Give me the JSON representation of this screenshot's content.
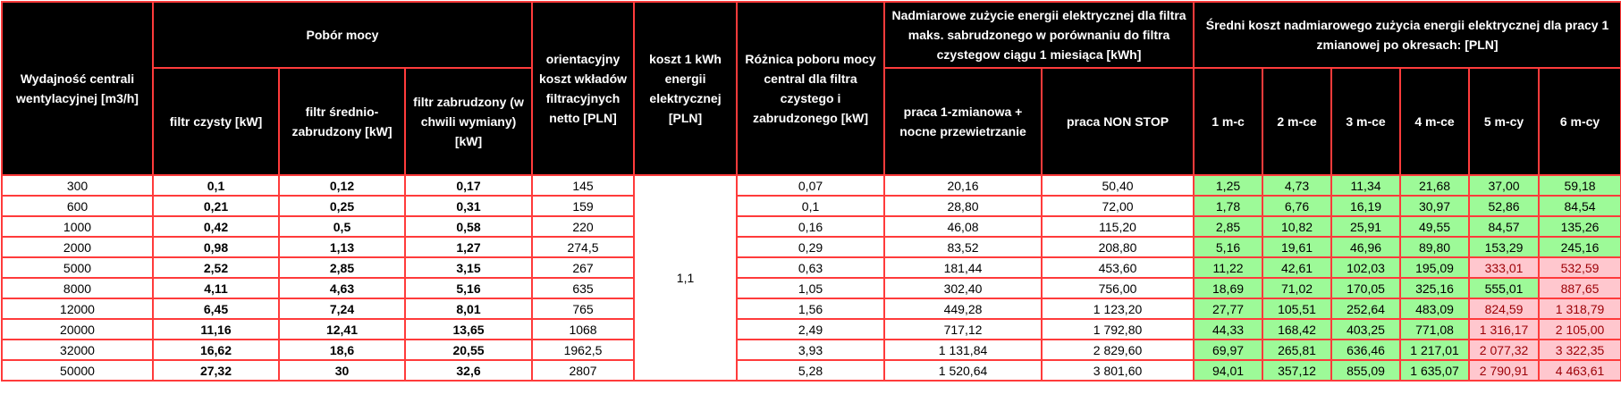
{
  "headers": {
    "capacity": "Wydajność centrali wentylacyjnej [m3/h]",
    "power_group": "Pobór mocy",
    "clean": "filtr czysty [kW]",
    "medium": "filtr średnio-zabrudzony [kW]",
    "dirty": "filtr zabrudzony (w chwili wymiany) [kW]",
    "filter_cost": "orientacyjny koszt wkładów filtracyjnych netto [PLN]",
    "kwh_cost": "koszt 1 kWh energii elektrycznej [PLN]",
    "difference": "Różnica poboru mocy central dla filtra czystego i zabrudzonego [kW]",
    "excess_group": "Nadmiarowe zużycie energii elektrycznej dla filtra maks. sabrudzonego w porównaniu do filtra czystegow ciągu 1 miesiąca [kWh]",
    "one_shift": "praca 1-zmianowa + nocne przewietrzanie",
    "nonstop": "praca NON STOP",
    "avg_cost_group": "Średni koszt nadmiarowego zużycia energii elektrycznej dla pracy 1 zmianowej po okresach: [PLN]",
    "periods": [
      "1 m-c",
      "2 m-ce",
      "3 m-ce",
      "4 m-ce",
      "5 m-cy",
      "6 m-cy"
    ]
  },
  "kwh_price": "1,1",
  "rows": [
    {
      "capacity": "300",
      "clean": "0,1",
      "medium": "0,12",
      "dirty": "0,17",
      "filter_cost": "145",
      "diff": "0,07",
      "one_shift": "20,16",
      "nonstop": "50,40",
      "costs": [
        "1,25",
        "4,73",
        "11,34",
        "21,68",
        "37,00",
        "59,18"
      ],
      "cost_status": [
        "good",
        "good",
        "good",
        "good",
        "good",
        "good"
      ]
    },
    {
      "capacity": "600",
      "clean": "0,21",
      "medium": "0,25",
      "dirty": "0,31",
      "filter_cost": "159",
      "diff": "0,1",
      "one_shift": "28,80",
      "nonstop": "72,00",
      "costs": [
        "1,78",
        "6,76",
        "16,19",
        "30,97",
        "52,86",
        "84,54"
      ],
      "cost_status": [
        "good",
        "good",
        "good",
        "good",
        "good",
        "good"
      ]
    },
    {
      "capacity": "1000",
      "clean": "0,42",
      "medium": "0,5",
      "dirty": "0,58",
      "filter_cost": "220",
      "diff": "0,16",
      "one_shift": "46,08",
      "nonstop": "115,20",
      "costs": [
        "2,85",
        "10,82",
        "25,91",
        "49,55",
        "84,57",
        "135,26"
      ],
      "cost_status": [
        "good",
        "good",
        "good",
        "good",
        "good",
        "good"
      ]
    },
    {
      "capacity": "2000",
      "clean": "0,98",
      "medium": "1,13",
      "dirty": "1,27",
      "filter_cost": "274,5",
      "diff": "0,29",
      "one_shift": "83,52",
      "nonstop": "208,80",
      "costs": [
        "5,16",
        "19,61",
        "46,96",
        "89,80",
        "153,29",
        "245,16"
      ],
      "cost_status": [
        "good",
        "good",
        "good",
        "good",
        "good",
        "good"
      ]
    },
    {
      "capacity": "5000",
      "clean": "2,52",
      "medium": "2,85",
      "dirty": "3,15",
      "filter_cost": "267",
      "diff": "0,63",
      "one_shift": "181,44",
      "nonstop": "453,60",
      "costs": [
        "11,22",
        "42,61",
        "102,03",
        "195,09",
        "333,01",
        "532,59"
      ],
      "cost_status": [
        "good",
        "good",
        "good",
        "good",
        "bad",
        "bad"
      ]
    },
    {
      "capacity": "8000",
      "clean": "4,11",
      "medium": "4,63",
      "dirty": "5,16",
      "filter_cost": "635",
      "diff": "1,05",
      "one_shift": "302,40",
      "nonstop": "756,00",
      "costs": [
        "18,69",
        "71,02",
        "170,05",
        "325,16",
        "555,01",
        "887,65"
      ],
      "cost_status": [
        "good",
        "good",
        "good",
        "good",
        "good",
        "bad"
      ]
    },
    {
      "capacity": "12000",
      "clean": "6,45",
      "medium": "7,24",
      "dirty": "8,01",
      "filter_cost": "765",
      "diff": "1,56",
      "one_shift": "449,28",
      "nonstop": "1 123,20",
      "costs": [
        "27,77",
        "105,51",
        "252,64",
        "483,09",
        "824,59",
        "1 318,79"
      ],
      "cost_status": [
        "good",
        "good",
        "good",
        "good",
        "bad",
        "bad"
      ]
    },
    {
      "capacity": "20000",
      "clean": "11,16",
      "medium": "12,41",
      "dirty": "13,65",
      "filter_cost": "1068",
      "diff": "2,49",
      "one_shift": "717,12",
      "nonstop": "1 792,80",
      "costs": [
        "44,33",
        "168,42",
        "403,25",
        "771,08",
        "1 316,17",
        "2 105,00"
      ],
      "cost_status": [
        "good",
        "good",
        "good",
        "good",
        "bad",
        "bad"
      ]
    },
    {
      "capacity": "32000",
      "clean": "16,62",
      "medium": "18,6",
      "dirty": "20,55",
      "filter_cost": "1962,5",
      "diff": "3,93",
      "one_shift": "1 131,84",
      "nonstop": "2 829,60",
      "costs": [
        "69,97",
        "265,81",
        "636,46",
        "1 217,01",
        "2 077,32",
        "3 322,35"
      ],
      "cost_status": [
        "good",
        "good",
        "good",
        "good",
        "bad",
        "bad"
      ]
    },
    {
      "capacity": "50000",
      "clean": "27,32",
      "medium": "30",
      "dirty": "32,6",
      "filter_cost": "2807",
      "diff": "5,28",
      "one_shift": "1 520,64",
      "nonstop": "3 801,60",
      "costs": [
        "94,01",
        "357,12",
        "855,09",
        "1 635,07",
        "2 790,91",
        "4 463,61"
      ],
      "cost_status": [
        "good",
        "good",
        "good",
        "good",
        "bad",
        "bad"
      ]
    }
  ],
  "colors": {
    "header_bg": "#000000",
    "header_text": "#ffffff",
    "border": "#ff3b3b",
    "good_fill": "#9dfa98",
    "bad_fill": "#ffc7ce",
    "bad_text": "#9c0006"
  }
}
